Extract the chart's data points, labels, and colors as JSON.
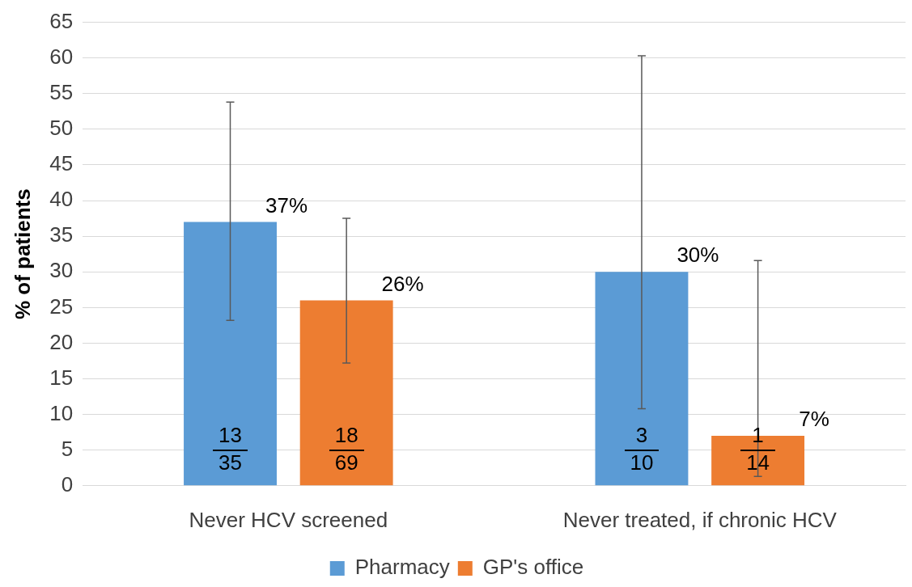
{
  "chart_data": {
    "type": "bar",
    "ylabel": "% of patients",
    "categories": [
      "Never HCV screened",
      "Never treated, if chronic HCV"
    ],
    "series": [
      {
        "name": "Pharmacy",
        "color": "#5b9bd5",
        "values": [
          37,
          30
        ],
        "errors": [
          [
            23.2,
            53.8
          ],
          [
            10.8,
            60.3
          ]
        ],
        "value_labels": [
          "37%",
          "30%"
        ]
      },
      {
        "name": "GP's office",
        "color": "#ed7d31",
        "values": [
          26,
          7
        ],
        "errors": [
          [
            17.2,
            37.5
          ],
          [
            1.3,
            31.6
          ]
        ],
        "value_labels": [
          "26%",
          "7%"
        ]
      }
    ],
    "annotations": [
      "13",
      "35",
      "3",
      "10",
      "18",
      "69",
      "1",
      "14"
    ],
    "ylim": [
      0,
      65
    ],
    "yticks": [
      0,
      5,
      10,
      15,
      20,
      25,
      30,
      35,
      40,
      45,
      50,
      55,
      60,
      65
    ],
    "grid": "y",
    "legend": "bottom"
  }
}
